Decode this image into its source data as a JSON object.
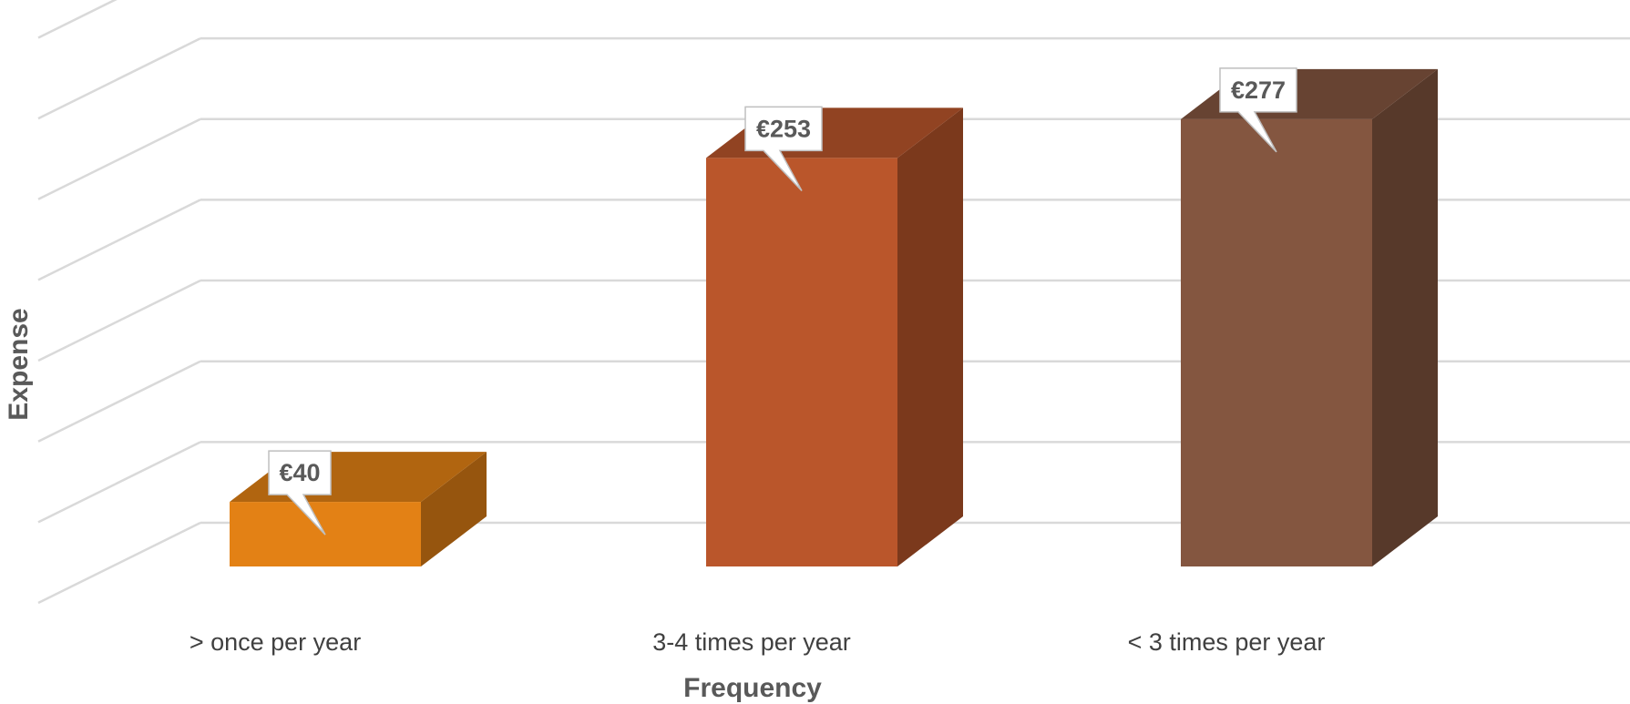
{
  "chart_data": {
    "type": "bar",
    "style": "3d-column",
    "categories": [
      "> once per year",
      "3-4 times per year",
      "< 3 times per year"
    ],
    "values": [
      40,
      253,
      277
    ],
    "data_labels": [
      "€40",
      "€253",
      "€277"
    ],
    "series": [
      {
        "values": [
          40,
          253,
          277
        ]
      }
    ],
    "colors": [
      "#E38115",
      "#BA562B",
      "#845640"
    ],
    "xlabel": "Frequency",
    "ylabel": "Expense",
    "ylim": [
      0,
      350
    ],
    "y_tick_step": 50,
    "grid": true,
    "legend": "none"
  }
}
